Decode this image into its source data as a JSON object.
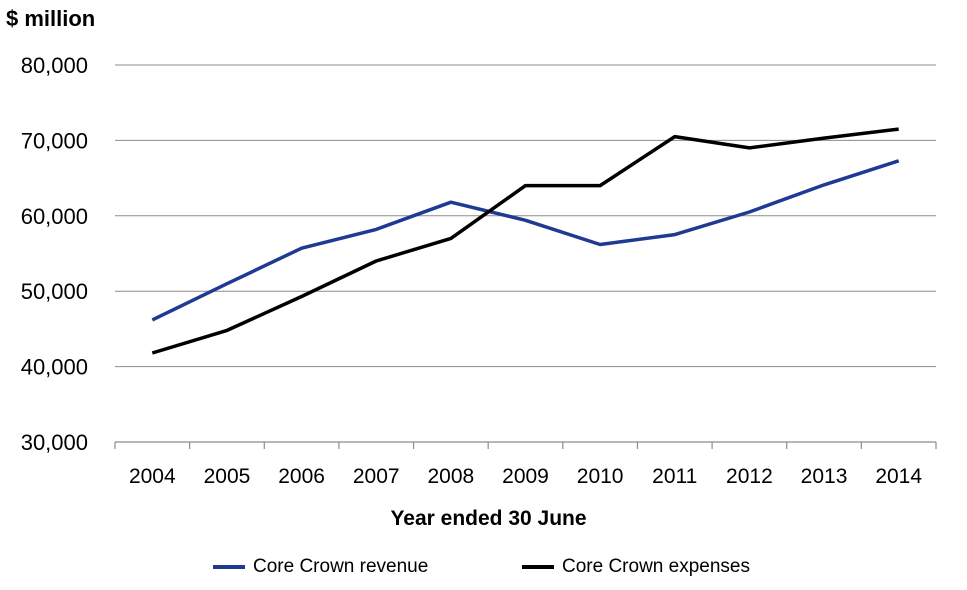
{
  "chart_data": {
    "type": "line",
    "y_unit_label": "$ million",
    "xlabel": "Year ended 30 June",
    "ylabel": "",
    "title": "",
    "x": [
      "2004",
      "2005",
      "2006",
      "2007",
      "2008",
      "2009",
      "2010",
      "2011",
      "2012",
      "2013",
      "2014"
    ],
    "ylim": [
      30000,
      80000
    ],
    "yticks": [
      30000,
      40000,
      50000,
      60000,
      70000,
      80000
    ],
    "ytick_labels": [
      "30,000",
      "40,000",
      "50,000",
      "60,000",
      "70,000",
      "80,000"
    ],
    "grid": true,
    "legend_position": "bottom",
    "series": [
      {
        "name": "Core Crown revenue",
        "color": "#1f3a93",
        "values": [
          46200,
          51000,
          55700,
          58200,
          61800,
          59400,
          56200,
          57500,
          60500,
          64100,
          67300
        ]
      },
      {
        "name": "Core Crown expenses",
        "color": "#000000",
        "values": [
          41800,
          44800,
          49300,
          54000,
          57000,
          64000,
          64000,
          70500,
          69000,
          70300,
          71500
        ]
      }
    ]
  }
}
